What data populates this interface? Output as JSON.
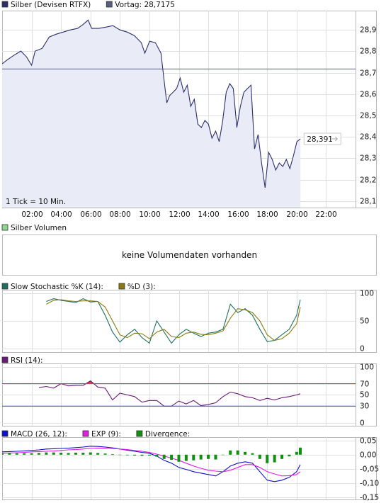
{
  "chart_data": [
    {
      "type": "line",
      "series": [
        {
          "name": "Silber (Devisen RTFX)",
          "color": "#2c2f6b",
          "last_value_label": "28,391",
          "values": [
            28.741,
            28.758,
            28.781,
            28.801,
            28.774,
            28.735,
            28.801,
            28.814,
            28.867,
            28.88,
            28.89,
            28.9,
            28.907,
            28.923,
            28.946,
            28.907,
            28.907,
            28.913,
            28.92,
            28.9,
            28.89,
            28.874,
            28.84,
            28.791,
            28.847,
            28.84,
            28.791,
            28.675,
            28.559,
            28.593,
            28.609,
            28.626,
            28.675,
            28.609,
            28.642,
            28.543,
            28.576,
            28.46,
            28.444,
            28.477,
            28.46,
            28.394,
            28.427,
            28.378,
            28.477,
            28.609,
            28.649,
            28.626,
            28.444,
            28.543,
            28.609,
            28.626,
            28.642,
            28.344,
            28.411,
            28.278,
            28.163,
            28.328,
            28.295,
            28.245,
            28.278,
            28.262,
            28.295,
            28.252,
            28.312,
            28.378,
            28.391
          ]
        }
      ],
      "x": [
        0,
        0.31,
        0.79,
        1.27,
        1.66,
        2.0,
        2.24,
        2.72,
        3.2,
        3.68,
        4.16,
        4.64,
        5.12,
        5.46,
        5.84,
        6.08,
        6.56,
        7.04,
        7.52,
        8.0,
        8.48,
        8.97,
        9.45,
        9.69,
        10.02,
        10.41,
        10.79,
        10.98,
        11.18,
        11.37,
        11.61,
        11.85,
        12.09,
        12.33,
        12.57,
        12.81,
        13.05,
        13.29,
        13.53,
        13.77,
        14.01,
        14.25,
        14.5,
        14.74,
        14.98,
        15.22,
        15.46,
        15.7,
        15.94,
        16.18,
        16.42,
        16.66,
        16.9,
        17.14,
        17.38,
        17.62,
        17.86,
        18.1,
        18.34,
        18.58,
        18.82,
        19.06,
        19.3,
        19.54,
        19.78,
        20.02,
        20.26
      ],
      "reference": {
        "name": "Vortag: 28,7175",
        "value": 28.7175,
        "color": "#5a5f80"
      },
      "area_color": "#e9ecf7",
      "annotation": "1 Tick = 10 Min.",
      "xlim": [
        0,
        24
      ],
      "xticks": [
        {
          "value": 2,
          "label": "02:00"
        },
        {
          "value": 4,
          "label": "04:00"
        },
        {
          "value": 6,
          "label": "06:00"
        },
        {
          "value": 8,
          "label": "08:00"
        },
        {
          "value": 10,
          "label": "10:00"
        },
        {
          "value": 12,
          "label": "12:00"
        },
        {
          "value": 14,
          "label": "14:00"
        },
        {
          "value": 16,
          "label": "16:00"
        },
        {
          "value": 18,
          "label": "18:00"
        },
        {
          "value": 20,
          "label": "20:00"
        },
        {
          "value": 22,
          "label": "22:00"
        }
      ],
      "ylim": [
        28.07,
        28.99
      ],
      "yticks": [
        {
          "value": 28.1,
          "label": "28,1"
        },
        {
          "value": 28.2,
          "label": "28,2"
        },
        {
          "value": 28.3,
          "label": "28,3"
        },
        {
          "value": 28.4,
          "label": "28,4"
        },
        {
          "value": 28.5,
          "label": "28,5"
        },
        {
          "value": 28.6,
          "label": "28,6"
        },
        {
          "value": 28.7,
          "label": "28,7"
        },
        {
          "value": 28.8,
          "label": "28,8"
        },
        {
          "value": 28.9,
          "label": "28,9"
        }
      ]
    },
    {
      "type": "empty",
      "series": [
        {
          "name": "Silber Volumen",
          "color": "#8fd68f"
        }
      ],
      "message": "keine Volumendaten vorhanden"
    },
    {
      "type": "line",
      "series": [
        {
          "name": "Slow Stochastic %K (14):",
          "color": "#1f6f5f",
          "values": [
            null,
            null,
            null,
            null,
            null,
            null,
            85,
            90,
            87,
            85,
            83,
            90,
            84,
            85,
            60,
            30,
            12,
            25,
            35,
            20,
            10,
            50,
            30,
            10,
            25,
            35,
            28,
            22,
            28,
            30,
            35,
            80,
            65,
            72,
            60,
            35,
            13,
            15,
            25,
            35,
            60,
            88
          ]
        },
        {
          "name": "%D (3):",
          "color": "#8a7a10",
          "values": [
            null,
            null,
            null,
            null,
            null,
            null,
            80,
            87,
            88,
            86,
            85,
            86,
            86,
            85,
            75,
            50,
            25,
            20,
            28,
            27,
            18,
            30,
            35,
            22,
            20,
            28,
            30,
            26,
            25,
            28,
            32,
            55,
            72,
            70,
            65,
            50,
            25,
            15,
            18,
            28,
            45,
            75
          ]
        }
      ],
      "x": [
        0,
        0.5,
        1,
        1.5,
        2,
        2.5,
        3,
        3.5,
        4,
        4.5,
        5,
        5.5,
        6,
        6.5,
        7,
        7.5,
        8,
        8.5,
        9,
        9.5,
        10,
        10.5,
        11,
        11.5,
        12,
        12.5,
        13,
        13.5,
        14,
        14.5,
        15,
        15.5,
        16,
        16.5,
        17,
        17.5,
        18,
        18.5,
        19,
        19.5,
        20,
        20.25
      ],
      "xlim": [
        0,
        24
      ],
      "ylim": [
        -6,
        106
      ],
      "yticks": [
        0,
        50,
        100
      ]
    },
    {
      "type": "line",
      "series": [
        {
          "name": "RSI (14):",
          "color": "#6a1b7a",
          "values": [
            null,
            null,
            null,
            null,
            null,
            63,
            65,
            62,
            70,
            66,
            67,
            67,
            75,
            64,
            62,
            41,
            53,
            50,
            47,
            37,
            40,
            40,
            30,
            30,
            39,
            34,
            40,
            31,
            33,
            36,
            47,
            55,
            52,
            47,
            45,
            40,
            44,
            41,
            45,
            47,
            50,
            52
          ]
        }
      ],
      "x": [
        0,
        0.5,
        1,
        1.5,
        2,
        2.5,
        3,
        3.5,
        4,
        4.5,
        5,
        5.5,
        6,
        6.5,
        7,
        7.5,
        8,
        8.5,
        9,
        9.5,
        10,
        10.5,
        11,
        11.5,
        12,
        12.5,
        13,
        13.5,
        14,
        14.5,
        15,
        15.5,
        16,
        16.5,
        17,
        17.5,
        18,
        18.5,
        19,
        19.5,
        20,
        20.25
      ],
      "levels": [
        {
          "value": 70,
          "color": "#e03838",
          "side": "above"
        },
        {
          "value": 30,
          "color": "#4444cc",
          "side": "below"
        }
      ],
      "xlim": [
        0,
        24
      ],
      "ylim": [
        -5,
        106
      ],
      "yticks": [
        0,
        30,
        50,
        70,
        100
      ]
    },
    {
      "type": "line",
      "series": [
        {
          "name": "MACD (26, 12):",
          "color": "#1010c8",
          "values": [
            0.01,
            0.011,
            0.012,
            0.013,
            0.015,
            0.017,
            0.02,
            0.021,
            0.022,
            0.023,
            0.025,
            0.027,
            0.03,
            0.029,
            0.027,
            0.024,
            0.02,
            0.016,
            0.012,
            0.008,
            0.005,
            -0.005,
            -0.02,
            -0.03,
            -0.045,
            -0.052,
            -0.06,
            -0.065,
            -0.07,
            -0.075,
            -0.06,
            -0.04,
            -0.03,
            -0.025,
            -0.03,
            -0.06,
            -0.09,
            -0.095,
            -0.09,
            -0.08,
            -0.06,
            -0.035
          ]
        },
        {
          "name": "EXP (9):",
          "color": "#e020e0",
          "values": [
            0.005,
            0.006,
            0.007,
            0.008,
            0.01,
            0.011,
            0.012,
            0.013,
            0.015,
            0.017,
            0.018,
            0.02,
            0.022,
            0.023,
            0.023,
            0.022,
            0.02,
            0.018,
            0.015,
            0.012,
            0.008,
            0.002,
            -0.005,
            -0.012,
            -0.02,
            -0.03,
            -0.04,
            -0.048,
            -0.055,
            -0.058,
            -0.06,
            -0.055,
            -0.045,
            -0.035,
            -0.035,
            -0.045,
            -0.06,
            -0.068,
            -0.075,
            -0.074,
            -0.07,
            -0.06
          ]
        },
        {
          "name": "Divergence:",
          "color": "#109010",
          "type": "bar",
          "values": [
            0.005,
            0.005,
            0.005,
            0.005,
            0.005,
            0.006,
            0.008,
            0.008,
            0.007,
            0.006,
            0.007,
            0.007,
            0.008,
            0.006,
            0.004,
            0.002,
            0,
            -0.002,
            -0.003,
            -0.004,
            -0.003,
            -0.007,
            -0.015,
            -0.018,
            -0.025,
            -0.022,
            -0.02,
            -0.017,
            -0.015,
            -0.017,
            0,
            0.015,
            0.015,
            0.01,
            0.005,
            -0.015,
            -0.03,
            -0.027,
            -0.015,
            -0.006,
            0.01,
            0.025
          ]
        }
      ],
      "x": [
        0,
        0.5,
        1,
        1.5,
        2,
        2.5,
        3,
        3.5,
        4,
        4.5,
        5,
        5.5,
        6,
        6.5,
        7,
        7.5,
        8,
        8.5,
        9,
        9.5,
        10,
        10.5,
        11,
        11.5,
        12,
        12.5,
        13,
        13.5,
        14,
        14.5,
        15,
        15.5,
        16,
        16.5,
        17,
        17.5,
        18,
        18.5,
        19,
        19.5,
        20,
        20.25
      ],
      "xlim": [
        0,
        24
      ],
      "ylim": [
        -0.158,
        0.062
      ],
      "yticks": [
        {
          "value": -0.15,
          "label": "-0,15"
        },
        {
          "value": -0.1,
          "label": "-0,10"
        },
        {
          "value": -0.05,
          "label": "-0,05"
        },
        {
          "value": 0,
          "label": "0,00"
        },
        {
          "value": 0.05,
          "label": "0,05"
        }
      ]
    }
  ]
}
